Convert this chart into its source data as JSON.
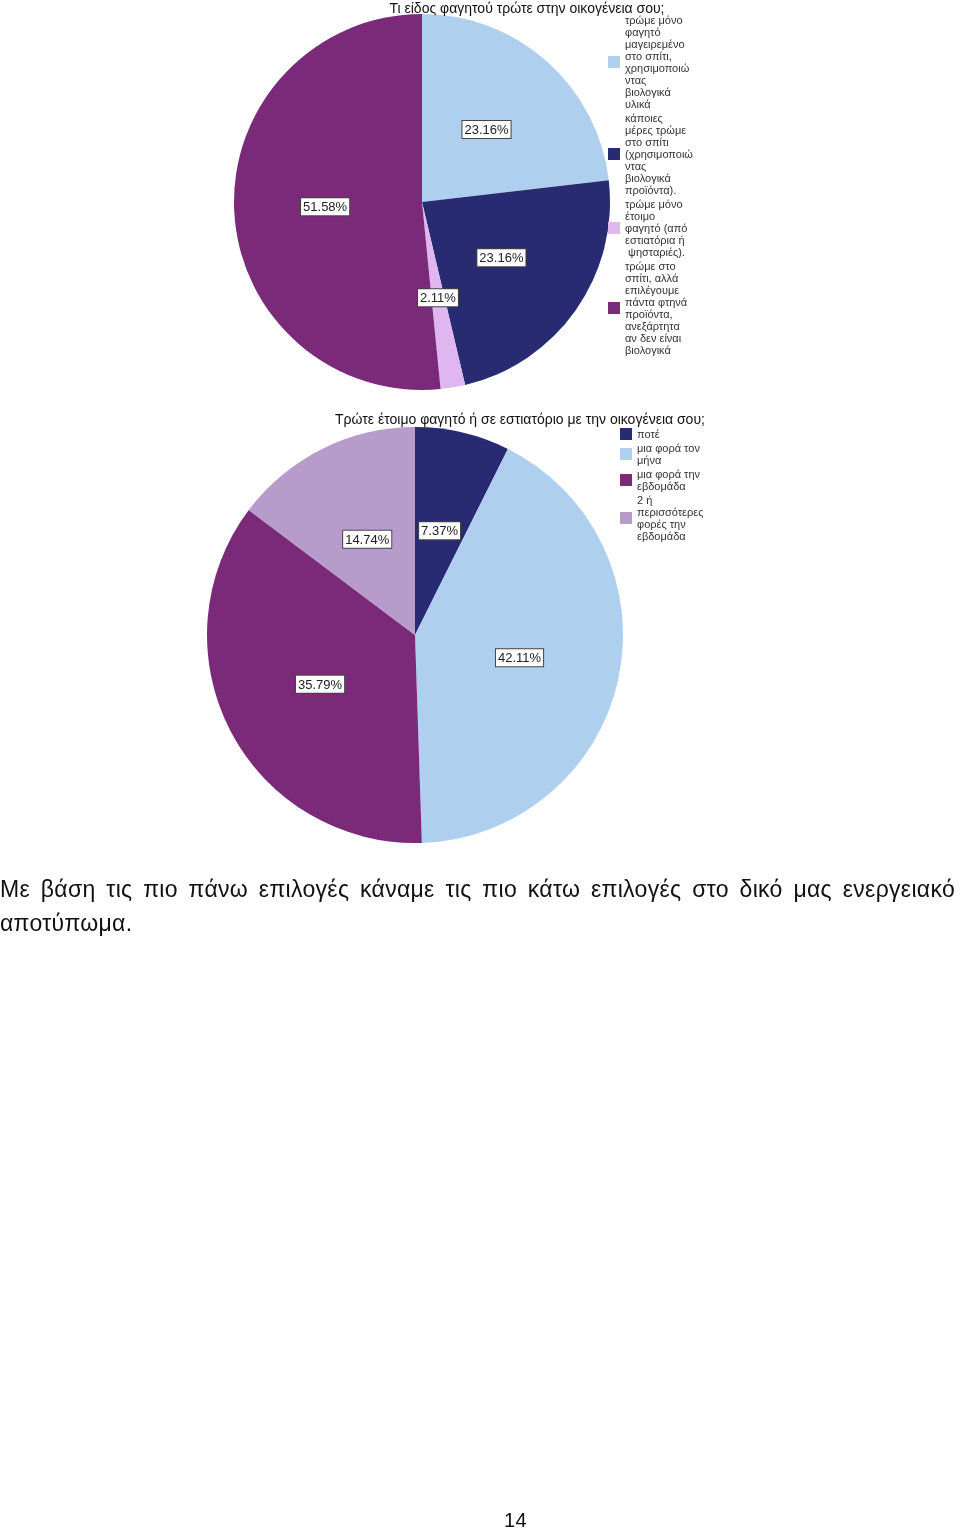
{
  "chart_data": [
    {
      "type": "pie",
      "title": "Τι είδος φαγητού τρώτε στην οικογένεια σου;",
      "categories": [
        "τρώμε μόνο φαγητό μαγειρεμένο στο σπίτι, χρησιμοποιώντας βιολογικά υλικά",
        "κάποιες μέρες τρώμε στο σπίτι (χρησιμοποιώντας βιολογικά προϊόντα).",
        "τρώμε μόνο έτοιμο φαγητό (από εστιατόρια ή ψησταριές).",
        "τρώμε στο σπίτι, αλλά επιλέγουμε πάντα φτηνά προϊόντα, ανεξάρτητα αν δεν είναι βιολογικά"
      ],
      "values": [
        23.16,
        23.16,
        2.11,
        51.58
      ],
      "value_labels": [
        "23.16%",
        "23.16%",
        "2.11%",
        "51.58%"
      ],
      "colors": [
        "#aecfee",
        "#282a72",
        "#dfb6f0",
        "#7b2a7a"
      ],
      "legend": "top right"
    },
    {
      "type": "pie",
      "title": "Τρώτε έτοιμο φαγητό ή σε εστιατόριο με την οικογένεια σου;",
      "categories": [
        "ποτέ",
        "μια φορά τον μήνα",
        "μια φορά την εβδομάδα",
        "2 ή περισσότερες φορές την εβδομάδα"
      ],
      "values": [
        7.37,
        42.11,
        35.79,
        14.74
      ],
      "value_labels": [
        "7.37%",
        "42.11%",
        "35.79%",
        "14.74%"
      ],
      "colors": [
        "#282a72",
        "#aecfee",
        "#7b2a7a",
        "#b79ccb"
      ],
      "legend": "top right",
      "annotations": [
        "Με βάση τις πιο πάνω επιλογές κάναμε τις πιο κάτω επιλογές στο δικό μας ενεργειακό αποτύπωμα.",
        "14"
      ]
    }
  ]
}
